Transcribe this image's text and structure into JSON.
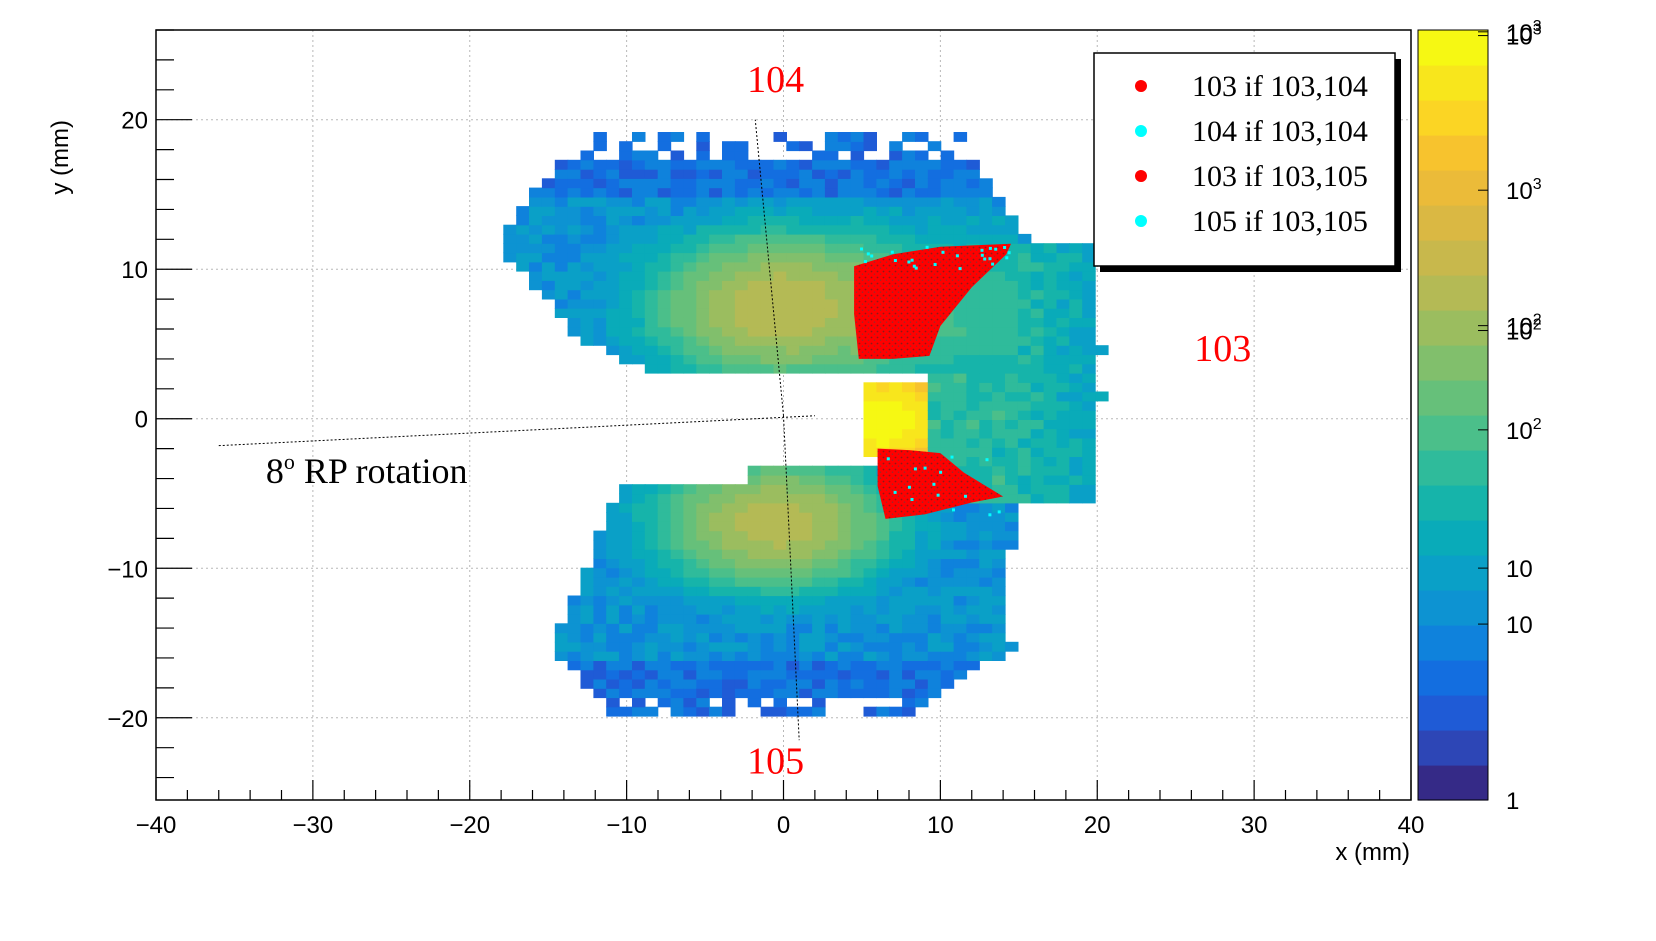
{
  "chart_data": {
    "type": "heatmap",
    "title": "",
    "xlabel": "x (mm)",
    "ylabel": "y (mm)",
    "xlim": [
      -40,
      40
    ],
    "ylim": [
      -25.5,
      26
    ],
    "x_ticks": [
      -40,
      -30,
      -20,
      -10,
      0,
      10,
      20,
      30,
      40
    ],
    "x_tick_labels": [
      "−40",
      "−30",
      "−20",
      "−10",
      "0",
      "10",
      "20",
      "30",
      "40"
    ],
    "y_ticks": [
      -20,
      -10,
      0,
      10,
      20
    ],
    "y_tick_labels": [
      "−20",
      "−10",
      "0",
      "10",
      "20"
    ],
    "grid": true,
    "color_scale": "log",
    "z_range": [
      1,
      5000
    ],
    "palette_labels": [
      {
        "z": 1,
        "label": "1"
      },
      {
        "z": 7,
        "label": "10"
      },
      {
        "z": 13,
        "label": "10"
      },
      {
        "z": 60,
        "label": "10",
        "exp": "2"
      },
      {
        "z": 180,
        "label": "10",
        "exp": "2"
      },
      {
        "z": 190,
        "label": "10",
        "exp": "2"
      },
      {
        "z": 850,
        "label": "10",
        "exp": "3"
      },
      {
        "z": 4700,
        "label": "10",
        "exp": "3"
      },
      {
        "z": 4900,
        "label": "10",
        "exp": "3"
      }
    ],
    "palette_colors": [
      "#352a87",
      "#2d46b6",
      "#1f5bd6",
      "#136ee0",
      "#0f82dc",
      "#0d93d2",
      "#0aa0c7",
      "#09abb9",
      "#16b4aa",
      "#2fbb9b",
      "#4bbf8a",
      "#66c07a",
      "#81bf6c",
      "#9bbd5f",
      "#b4ba55",
      "#c8b84c",
      "#dab843",
      "#ebbb39",
      "#f7c32e",
      "#fbd524",
      "#f8e61c",
      "#f6f813"
    ],
    "regions": [
      {
        "name": "upper-arm",
        "x_range": [
          -17.5,
          15.5
        ],
        "y_range": [
          3,
          19
        ],
        "z_peak": 350
      },
      {
        "name": "lower-arm",
        "x_range": [
          -16,
          15.5
        ],
        "y_range": [
          -20,
          -3
        ],
        "z_peak": 300
      },
      {
        "name": "right-arm",
        "x_range": [
          5,
          20.5
        ],
        "y_range": [
          -5.5,
          12
        ],
        "z_peak": 70
      },
      {
        "name": "core",
        "x_range": [
          4.8,
          9.5
        ],
        "y_range": [
          -2.5,
          2.5
        ],
        "z_peak": 4900
      }
    ],
    "overlay_series": [
      {
        "name": "103 if 103,104",
        "color": "#ff0000",
        "marker": "dot",
        "x_range": [
          4.5,
          14.5
        ],
        "y_range": [
          4.0,
          11.5
        ]
      },
      {
        "name": "104 if 103,104",
        "color": "#00ffff",
        "marker": "dot"
      },
      {
        "name": "103 if 103,105",
        "color": "#ff0000",
        "marker": "dot",
        "x_range": [
          6.0,
          14.0
        ],
        "y_range": [
          -6.5,
          -2.0
        ]
      },
      {
        "name": "105 if 103,105",
        "color": "#00ffff",
        "marker": "dot"
      }
    ],
    "rotation_line": {
      "from": [
        -36,
        -1.8
      ],
      "to": [
        2,
        0.2
      ]
    },
    "vertical_line_upper": {
      "from": [
        0,
        0.2
      ],
      "to": [
        -1.8,
        20
      ]
    },
    "vertical_line_lower": {
      "from": [
        0,
        0.2
      ],
      "to": [
        1.0,
        -21.5
      ]
    },
    "legend_position": "top-right",
    "annotations": [
      {
        "text": "104",
        "x": -0.5,
        "y": 22.8
      },
      {
        "text": "105",
        "x": -0.5,
        "y": -22.8
      },
      {
        "text": "103",
        "x": 28,
        "y": 4.8
      }
    ],
    "rotation_label": {
      "base": "8",
      "sup": "o",
      "rest": " RP rotation",
      "x": -33,
      "y": -3.5
    }
  }
}
